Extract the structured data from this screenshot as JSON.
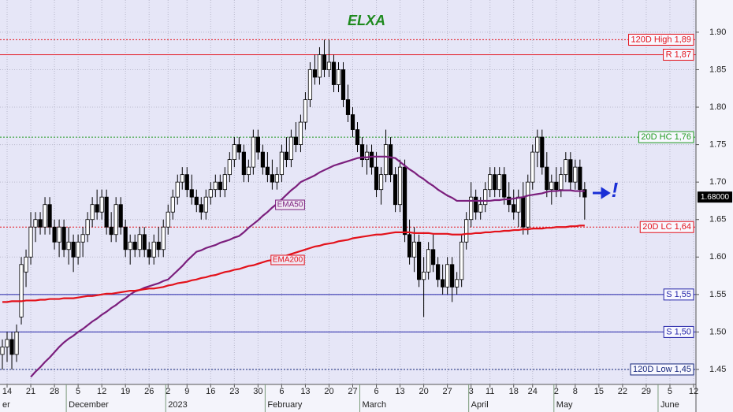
{
  "chart_data": {
    "type": "candlestick",
    "title": "ELXA",
    "categories": [
      null,
      "14",
      null,
      null,
      null,
      null,
      "21",
      null,
      null,
      null,
      null,
      "28",
      null,
      null,
      null,
      null,
      "5",
      null,
      null,
      null,
      null,
      "12",
      null,
      null,
      null,
      null,
      "19",
      null,
      null,
      null,
      null,
      "26",
      null,
      null,
      null,
      "2",
      null,
      null,
      null,
      "9",
      null,
      null,
      null,
      null,
      "16",
      null,
      null,
      null,
      null,
      "23",
      null,
      null,
      null,
      null,
      "30",
      null,
      null,
      null,
      null,
      "6",
      null,
      null,
      null,
      null,
      "13",
      null,
      null,
      null,
      null,
      "20",
      null,
      null,
      null,
      null,
      "27",
      null,
      null,
      null,
      null,
      "6",
      null,
      null,
      null,
      null,
      "13",
      null,
      null,
      null,
      null,
      "20",
      null,
      null,
      null,
      null,
      "27",
      null,
      null,
      null,
      null,
      "3",
      null,
      null,
      null,
      "11",
      null,
      null,
      null,
      null,
      "18",
      null,
      null,
      null,
      "24",
      null,
      null,
      null,
      null,
      "2",
      null,
      null,
      null,
      "8",
      null,
      null,
      null,
      null,
      "15",
      null,
      null,
      null,
      null,
      "22",
      null,
      null,
      null,
      null,
      "29",
      null,
      null,
      null,
      null,
      "5",
      null,
      null,
      null,
      null,
      "12"
    ],
    "months": [
      "er",
      "December",
      "2023",
      "February",
      "March",
      "April",
      "May",
      "June"
    ],
    "open": [
      1.47,
      1.48,
      1.49,
      1.47,
      1.52,
      1.58,
      1.6,
      1.64,
      1.65,
      1.64,
      1.67,
      1.64,
      1.62,
      1.64,
      1.61,
      1.62,
      1.6,
      1.62,
      1.63,
      1.65,
      1.67,
      1.66,
      1.68,
      1.64,
      1.63,
      1.67,
      1.64,
      1.61,
      1.62,
      1.61,
      1.63,
      1.61,
      1.6,
      1.62,
      1.61,
      1.64,
      1.66,
      1.68,
      1.7,
      1.71,
      1.69,
      1.68,
      1.67,
      1.66,
      1.68,
      1.69,
      1.7,
      1.69,
      1.71,
      1.73,
      1.75,
      1.74,
      1.71,
      1.72,
      1.76,
      1.74,
      1.72,
      1.71,
      1.7,
      1.71,
      1.74,
      1.73,
      1.76,
      1.75,
      1.78,
      1.81,
      1.85,
      1.84,
      1.87,
      1.85,
      1.86,
      1.83,
      1.85,
      1.81,
      1.79,
      1.77,
      1.75,
      1.73,
      1.74,
      1.72,
      1.69,
      1.71,
      1.75,
      1.71,
      1.67,
      1.72,
      1.63,
      1.6,
      1.62,
      1.57,
      1.58,
      1.61,
      1.59,
      1.57,
      1.56,
      1.59,
      1.56,
      1.57,
      1.62,
      1.65,
      1.68,
      1.66,
      1.67,
      1.69,
      1.71,
      1.69,
      1.71,
      1.68,
      1.67,
      1.66,
      1.68,
      1.64,
      1.7,
      1.74,
      1.76,
      1.72,
      1.69,
      1.7,
      1.69,
      1.71,
      1.73,
      1.7,
      1.72,
      1.69,
      null,
      null,
      null,
      null,
      null,
      null,
      null,
      null,
      null,
      null,
      null,
      null,
      null,
      null,
      null,
      null,
      null,
      null,
      null,
      null,
      null,
      null,
      null
    ],
    "high": [
      1.49,
      1.5,
      1.5,
      1.51,
      1.6,
      1.61,
      1.66,
      1.66,
      1.66,
      1.68,
      1.68,
      1.65,
      1.65,
      1.65,
      1.64,
      1.63,
      1.63,
      1.64,
      1.66,
      1.68,
      1.69,
      1.69,
      1.69,
      1.66,
      1.68,
      1.68,
      1.65,
      1.63,
      1.63,
      1.64,
      1.64,
      1.62,
      1.63,
      1.64,
      1.65,
      1.67,
      1.69,
      1.71,
      1.72,
      1.72,
      1.71,
      1.69,
      1.68,
      1.69,
      1.7,
      1.71,
      1.71,
      1.72,
      1.74,
      1.76,
      1.76,
      1.75,
      1.73,
      1.77,
      1.77,
      1.75,
      1.74,
      1.73,
      1.72,
      1.75,
      1.76,
      1.77,
      1.78,
      1.79,
      1.82,
      1.86,
      1.87,
      1.88,
      1.89,
      1.89,
      1.87,
      1.86,
      1.86,
      1.83,
      1.8,
      1.78,
      1.76,
      1.75,
      1.75,
      1.74,
      1.72,
      1.77,
      1.76,
      1.72,
      1.73,
      1.73,
      1.65,
      1.64,
      1.63,
      1.6,
      1.62,
      1.63,
      1.6,
      1.59,
      1.6,
      1.6,
      1.58,
      1.63,
      1.66,
      1.7,
      1.69,
      1.68,
      1.7,
      1.72,
      1.72,
      1.72,
      1.72,
      1.7,
      1.69,
      1.69,
      1.7,
      1.71,
      1.75,
      1.77,
      1.77,
      1.74,
      1.71,
      1.72,
      1.72,
      1.74,
      1.74,
      1.73,
      1.73,
      1.7,
      null,
      null,
      null,
      null,
      null,
      null,
      null,
      null,
      null,
      null,
      null,
      null,
      null,
      null,
      null,
      null,
      null,
      null,
      null,
      null,
      null,
      null,
      null
    ],
    "low": [
      1.45,
      1.46,
      1.45,
      1.46,
      1.51,
      1.56,
      1.59,
      1.62,
      1.63,
      1.63,
      1.63,
      1.61,
      1.6,
      1.6,
      1.59,
      1.58,
      1.59,
      1.6,
      1.62,
      1.64,
      1.65,
      1.65,
      1.63,
      1.62,
      1.62,
      1.63,
      1.6,
      1.59,
      1.6,
      1.6,
      1.6,
      1.59,
      1.59,
      1.6,
      1.6,
      1.63,
      1.65,
      1.67,
      1.69,
      1.68,
      1.67,
      1.66,
      1.65,
      1.65,
      1.67,
      1.68,
      1.68,
      1.68,
      1.7,
      1.72,
      1.73,
      1.7,
      1.7,
      1.71,
      1.73,
      1.71,
      1.7,
      1.69,
      1.69,
      1.7,
      1.72,
      1.72,
      1.74,
      1.74,
      1.77,
      1.8,
      1.83,
      1.83,
      1.84,
      1.84,
      1.82,
      1.82,
      1.8,
      1.78,
      1.76,
      1.74,
      1.72,
      1.71,
      1.71,
      1.68,
      1.67,
      1.7,
      1.7,
      1.66,
      1.66,
      1.62,
      1.59,
      1.58,
      1.56,
      1.52,
      1.57,
      1.58,
      1.56,
      1.55,
      1.55,
      1.54,
      1.55,
      1.56,
      1.61,
      1.64,
      1.65,
      1.65,
      1.66,
      1.68,
      1.68,
      1.68,
      1.67,
      1.66,
      1.65,
      1.64,
      1.63,
      1.63,
      1.69,
      1.72,
      1.71,
      1.68,
      1.67,
      1.68,
      1.68,
      1.7,
      1.69,
      1.69,
      1.68,
      1.65,
      null,
      null,
      null,
      null,
      null,
      null,
      null,
      null,
      null,
      null,
      null,
      null,
      null,
      null,
      null,
      null,
      null,
      null,
      null,
      null,
      null,
      null,
      null
    ],
    "close": [
      1.48,
      1.49,
      1.47,
      1.5,
      1.59,
      1.6,
      1.64,
      1.65,
      1.64,
      1.67,
      1.64,
      1.62,
      1.64,
      1.61,
      1.62,
      1.6,
      1.62,
      1.63,
      1.65,
      1.67,
      1.66,
      1.68,
      1.64,
      1.63,
      1.67,
      1.64,
      1.61,
      1.62,
      1.61,
      1.63,
      1.61,
      1.6,
      1.62,
      1.61,
      1.64,
      1.66,
      1.68,
      1.7,
      1.71,
      1.69,
      1.68,
      1.67,
      1.66,
      1.68,
      1.69,
      1.7,
      1.69,
      1.71,
      1.73,
      1.75,
      1.74,
      1.71,
      1.72,
      1.76,
      1.74,
      1.72,
      1.71,
      1.7,
      1.71,
      1.74,
      1.73,
      1.76,
      1.75,
      1.78,
      1.81,
      1.85,
      1.84,
      1.87,
      1.85,
      1.86,
      1.83,
      1.85,
      1.81,
      1.79,
      1.77,
      1.75,
      1.73,
      1.74,
      1.72,
      1.69,
      1.71,
      1.75,
      1.71,
      1.67,
      1.72,
      1.63,
      1.6,
      1.62,
      1.57,
      1.58,
      1.61,
      1.59,
      1.57,
      1.56,
      1.59,
      1.56,
      1.57,
      1.62,
      1.65,
      1.68,
      1.66,
      1.67,
      1.69,
      1.71,
      1.69,
      1.71,
      1.68,
      1.67,
      1.66,
      1.68,
      1.64,
      1.7,
      1.74,
      1.76,
      1.72,
      1.69,
      1.7,
      1.69,
      1.71,
      1.73,
      1.7,
      1.72,
      1.69,
      1.68,
      null,
      null,
      null,
      null,
      null,
      null,
      null,
      null,
      null,
      null,
      null,
      null,
      null,
      null,
      null,
      null,
      null,
      null,
      null,
      null,
      null,
      null,
      null
    ],
    "lines": [
      {
        "name": "EMA50",
        "color": "#7b1f7d",
        "values": [
          null,
          null,
          null,
          null,
          null,
          null,
          1.44,
          1.447,
          1.453,
          1.46,
          1.466,
          1.473,
          1.48,
          1.486,
          1.491,
          1.495,
          1.5,
          1.504,
          1.509,
          1.514,
          1.518,
          1.523,
          1.527,
          1.532,
          1.536,
          1.541,
          1.545,
          1.55,
          1.554,
          1.556,
          1.559,
          1.561,
          1.563,
          1.565,
          1.568,
          1.57,
          1.576,
          1.582,
          1.588,
          1.595,
          1.601,
          1.607,
          1.609,
          1.612,
          1.614,
          1.616,
          1.619,
          1.621,
          1.623,
          1.626,
          1.628,
          1.633,
          1.639,
          1.644,
          1.649,
          1.655,
          1.66,
          1.666,
          1.671,
          1.677,
          1.683,
          1.689,
          1.694,
          1.7,
          1.703,
          1.706,
          1.709,
          1.713,
          1.716,
          1.719,
          1.722,
          1.724,
          1.726,
          1.728,
          1.73,
          1.732,
          1.733,
          1.733,
          1.734,
          1.734,
          1.734,
          1.734,
          1.733,
          1.732,
          1.727,
          1.722,
          1.717,
          1.713,
          1.708,
          1.704,
          1.699,
          1.695,
          1.69,
          1.686,
          1.682,
          1.679,
          1.675,
          1.675,
          1.675,
          1.675,
          1.675,
          1.675,
          1.675,
          1.675,
          1.676,
          1.676,
          1.677,
          1.677,
          1.678,
          1.679,
          1.68,
          1.682,
          1.683,
          1.684,
          1.685,
          1.687,
          1.688,
          1.688,
          1.689,
          1.689,
          1.689,
          1.688,
          1.688,
          1.688,
          null,
          null,
          null,
          null,
          null,
          null,
          null,
          null,
          null,
          null,
          null,
          null,
          null,
          null,
          null,
          null,
          null,
          null,
          null,
          null,
          null,
          null,
          null
        ]
      },
      {
        "name": "EMA200",
        "color": "#e3121b",
        "values": [
          1.54,
          1.54,
          1.541,
          1.541,
          1.541,
          1.542,
          1.542,
          1.542,
          1.543,
          1.543,
          1.544,
          1.544,
          1.544,
          1.545,
          1.545,
          1.545,
          1.546,
          1.547,
          1.548,
          1.548,
          1.549,
          1.55,
          1.551,
          1.551,
          1.552,
          1.553,
          1.554,
          1.555,
          1.555,
          1.556,
          1.557,
          1.558,
          1.558,
          1.559,
          1.56,
          1.562,
          1.563,
          1.565,
          1.566,
          1.567,
          1.569,
          1.57,
          1.572,
          1.573,
          1.575,
          1.576,
          1.578,
          1.58,
          1.581,
          1.583,
          1.584,
          1.586,
          1.588,
          1.589,
          1.591,
          1.593,
          1.595,
          1.596,
          1.598,
          1.6,
          1.602,
          1.604,
          1.606,
          1.608,
          1.61,
          1.612,
          1.614,
          1.615,
          1.617,
          1.618,
          1.619,
          1.621,
          1.622,
          1.623,
          1.625,
          1.626,
          1.627,
          1.628,
          1.629,
          1.63,
          1.63,
          1.631,
          1.632,
          1.633,
          1.633,
          1.633,
          1.633,
          1.632,
          1.632,
          1.632,
          1.632,
          1.631,
          1.631,
          1.631,
          1.631,
          1.63,
          1.63,
          1.63,
          1.631,
          1.631,
          1.632,
          1.632,
          1.633,
          1.633,
          1.634,
          1.634,
          1.635,
          1.635,
          1.636,
          1.636,
          1.637,
          1.637,
          1.638,
          1.638,
          1.638,
          1.639,
          1.639,
          1.64,
          1.64,
          1.64,
          1.641,
          1.641,
          1.642,
          1.642,
          null,
          null,
          null,
          null,
          null,
          null,
          null,
          null,
          null,
          null,
          null,
          null,
          null,
          null,
          null,
          null,
          null,
          null,
          null,
          null,
          null,
          null,
          null
        ]
      }
    ],
    "levels": [
      {
        "label": "120D High 1,89",
        "value": 1.89,
        "color": "#e3121b",
        "style": "dotted"
      },
      {
        "label": "R 1,87",
        "value": 1.87,
        "color": "#e3121b",
        "style": "solid"
      },
      {
        "label": "20D HC 1,76",
        "value": 1.76,
        "color": "#1f9a1f",
        "style": "dotted"
      },
      {
        "label": "20D LC 1,64",
        "value": 1.64,
        "color": "#e3121b",
        "style": "dotted"
      },
      {
        "label": "S 1,55",
        "value": 1.55,
        "color": "#2323a8",
        "style": "solid"
      },
      {
        "label": "S 1,50",
        "value": 1.5,
        "color": "#2323a8",
        "style": "solid"
      },
      {
        "label": "120D Low 1,45",
        "value": 1.45,
        "color": "#13247a",
        "style": "dotted"
      }
    ],
    "last_price": {
      "value": 1.68,
      "label": "1.68000"
    },
    "alert_mark": "!",
    "ylim": [
      1.43,
      1.943
    ],
    "yticks": [
      1.45,
      {
        "value": 1.5,
        "label": "1.50"
      },
      1.55,
      {
        "value": 1.6,
        "label": "1.60"
      },
      1.65,
      {
        "value": 1.7,
        "label": "1.70"
      },
      1.75,
      {
        "value": 1.8,
        "label": "1.80"
      },
      1.85,
      {
        "value": 1.9,
        "label": "1.90"
      }
    ],
    "grid": true
  }
}
